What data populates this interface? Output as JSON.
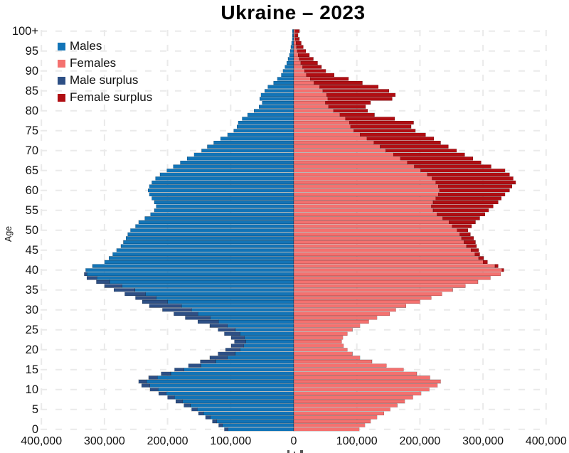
{
  "title": "Ukraine – 2023",
  "y_axis": {
    "label": "Age",
    "tick_ages": [
      0,
      5,
      10,
      15,
      20,
      25,
      30,
      35,
      40,
      45,
      50,
      55,
      60,
      65,
      70,
      75,
      80,
      85,
      90,
      95,
      100
    ],
    "tick_labels": [
      "0",
      "5",
      "10",
      "15",
      "20",
      "25",
      "30",
      "35",
      "40",
      "45",
      "50",
      "55",
      "60",
      "65",
      "70",
      "75",
      "80",
      "85",
      "90",
      "95",
      "100+"
    ]
  },
  "x_axis": {
    "tick_values": [
      -400000,
      -300000,
      -200000,
      -100000,
      0,
      100000,
      200000,
      300000,
      400000
    ],
    "tick_labels": [
      "400,000",
      "300,000",
      "200,000",
      "100,000",
      "0",
      "100,000",
      "200,000",
      "300,000",
      "400,000"
    ]
  },
  "legend": {
    "items": [
      {
        "label": "Males",
        "color": "#1274b7"
      },
      {
        "label": "Females",
        "color": "#f4716f"
      },
      {
        "label": "Male surplus",
        "color": "#2d4f85"
      },
      {
        "label": "Female surplus",
        "color": "#b00e13"
      }
    ]
  },
  "colors": {
    "males": "#1274b7",
    "females": "#f4716f",
    "male_surplus": "#2d4f85",
    "female_surplus": "#b00e13",
    "grid": "#eaeaea",
    "bar_outline": "rgba(0,0,0,0.28)"
  },
  "chart_data": {
    "type": "bar",
    "variant": "population_pyramid",
    "title": "Ukraine – 2023",
    "orientation": "horizontal",
    "age_min": 0,
    "age_max": 100,
    "top_bin": "100+",
    "x_range_persons": [
      -400000,
      400000
    ],
    "grid": true,
    "legend_position": "upper_left",
    "ylabel": "Age",
    "series": [
      {
        "name": "Males",
        "side": "left",
        "color": "#1274b7",
        "values_by_age": [
          110000,
          119000,
          129000,
          140000,
          151000,
          162000,
          174000,
          187000,
          200000,
          214000,
          228000,
          241000,
          246000,
          230000,
          210000,
          189000,
          167000,
          148000,
          133000,
          120000,
          108000,
          99000,
          94000,
          99000,
          110000,
          120000,
          133000,
          152000,
          172000,
          190000,
          208000,
          229000,
          240000,
          251000,
          268000,
          285000,
          300000,
          313000,
          328000,
          332000,
          330000,
          319000,
          300000,
          293000,
          287000,
          281000,
          274000,
          270000,
          266000,
          263000,
          259000,
          251000,
          246000,
          236000,
          227000,
          221000,
          218000,
          221000,
          225000,
          229000,
          231000,
          229000,
          225000,
          219000,
          212000,
          201000,
          191000,
          180000,
          169000,
          158000,
          146000,
          137000,
          127000,
          116000,
          105000,
          95000,
          90000,
          88000,
          82000,
          73000,
          63000,
          55000,
          50000,
          54000,
          52000,
          46000,
          41000,
          32000,
          26000,
          20000,
          17000,
          14000,
          11000,
          9000,
          7000,
          5500,
          4500,
          3500,
          2500,
          2000,
          2000
        ]
      },
      {
        "name": "Females",
        "side": "right",
        "color": "#f4716f",
        "values_by_age": [
          104000,
          113000,
          122000,
          132000,
          143000,
          153000,
          164000,
          176000,
          189000,
          202000,
          215000,
          228000,
          233000,
          216000,
          195000,
          174000,
          147000,
          124000,
          105000,
          93000,
          85000,
          79000,
          76000,
          78000,
          85000,
          93000,
          105000,
          119000,
          132000,
          152000,
          162000,
          178000,
          200000,
          218000,
          235000,
          252000,
          272000,
          292000,
          312000,
          328000,
          333000,
          324000,
          307000,
          301000,
          295000,
          293000,
          290000,
          288000,
          285000,
          280000,
          276000,
          282000,
          288000,
          295000,
          303000,
          309000,
          316000,
          324000,
          329000,
          335000,
          342000,
          346000,
          352000,
          348000,
          342000,
          335000,
          313000,
          297000,
          284000,
          271000,
          258000,
          245000,
          233000,
          222000,
          209000,
          193000,
          186000,
          190000,
          160000,
          128000,
          117000,
          114000,
          122000,
          156000,
          161000,
          151000,
          134000,
          109000,
          87000,
          64000,
          51000,
          44000,
          38000,
          31000,
          25000,
          19000,
          15000,
          12000,
          9000,
          7000,
          9000
        ]
      },
      {
        "name": "Male surplus",
        "color": "#2d4f85",
        "derived": "max(0, males - females), drawn at tip of male bar"
      },
      {
        "name": "Female surplus",
        "color": "#b00e13",
        "derived": "max(0, females - males), drawn at tip of female bar"
      }
    ]
  }
}
